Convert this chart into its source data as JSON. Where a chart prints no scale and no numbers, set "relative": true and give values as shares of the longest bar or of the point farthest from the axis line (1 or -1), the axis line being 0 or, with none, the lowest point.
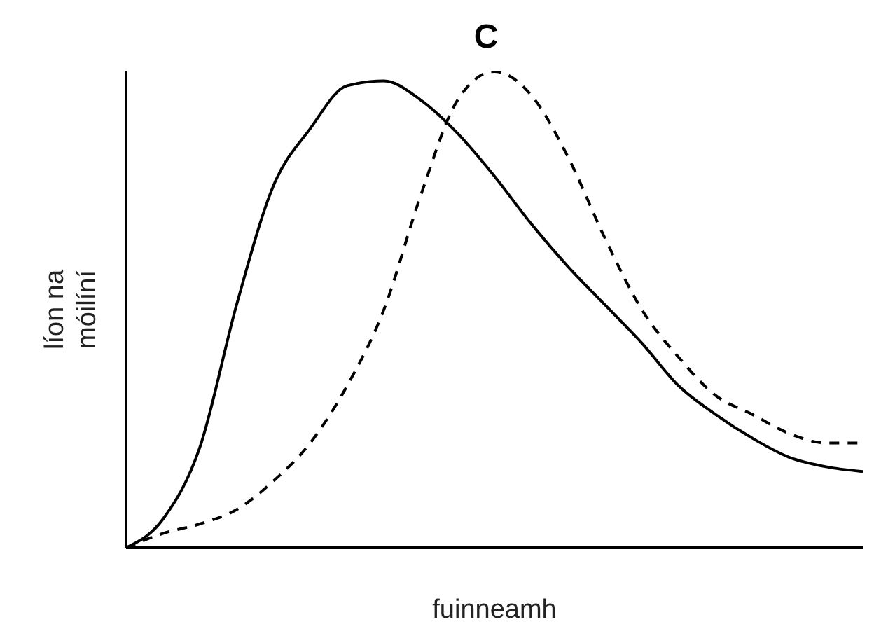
{
  "chart_data": {
    "type": "line",
    "title": "C",
    "xlabel": "fuinneamh",
    "ylabel": "líon na móilíní",
    "relative": true,
    "marker": "none",
    "categories": [
      null,
      null,
      null,
      null,
      null,
      null,
      null,
      null,
      null,
      null,
      null,
      null,
      null,
      null,
      null,
      null,
      null,
      null,
      null,
      null,
      null
    ],
    "series": [
      {
        "color": "#000000",
        "line_style": "solid",
        "values": [
          0,
          0.06,
          0.21,
          0.51,
          0.76,
          0.88,
          0.97,
          0.98,
          0.94,
          0.87,
          0.78,
          0.68,
          0.59,
          0.51,
          0.43,
          0.34,
          0.28,
          0.23,
          0.19,
          0.17,
          0.16
        ]
      },
      {
        "color": "#000000",
        "line_style": "dashed",
        "values": [
          0,
          0.03,
          0.05,
          0.08,
          0.14,
          0.22,
          0.34,
          0.5,
          0.74,
          0.94,
          1,
          0.95,
          0.82,
          0.65,
          0.5,
          0.4,
          0.32,
          0.28,
          0.24,
          0.22,
          0.22
        ]
      }
    ]
  }
}
